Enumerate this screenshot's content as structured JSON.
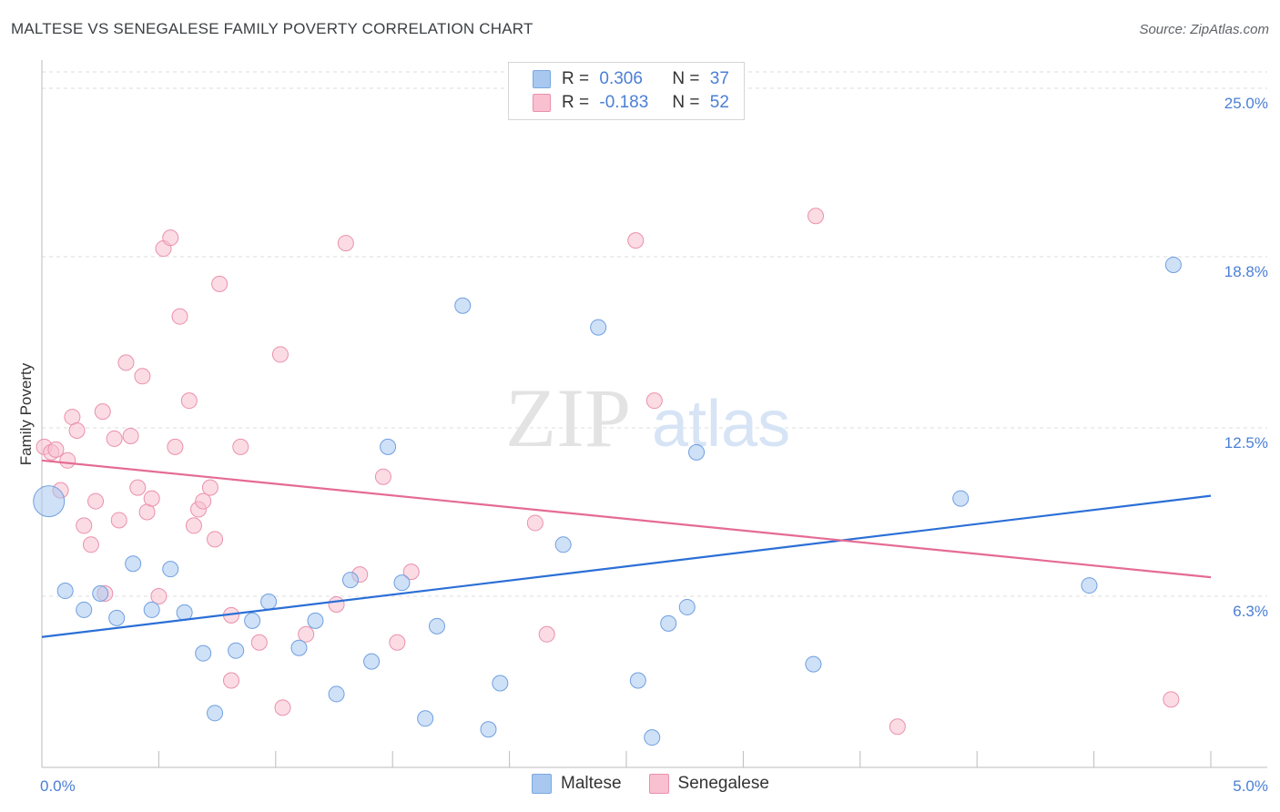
{
  "title": "MALTESE VS SENEGALESE FAMILY POVERTY CORRELATION CHART",
  "source": "Source: ZipAtlas.com",
  "watermark": {
    "zip": "ZIP",
    "atlas": "atlas"
  },
  "legend": {
    "rows": [
      {
        "r_label": "R =",
        "r_value": "0.306",
        "n_label": "N =",
        "n_value": "37",
        "color": "#a8c8f0",
        "border": "#7aa8e0"
      },
      {
        "r_label": "R =",
        "r_value": "-0.183",
        "n_label": "N =",
        "n_value": "52",
        "color": "#f8c0d0",
        "border": "#eb90ac"
      }
    ]
  },
  "bottom_legend": {
    "maltese": "Maltese",
    "senegalese": "Senegalese"
  },
  "colors": {
    "blue_fill": "#a8c8f0",
    "blue_stroke": "#6f9fe0",
    "blue_line": "#2b6fd6",
    "pink_fill": "#f8c0d0",
    "pink_stroke": "#eb90ac",
    "pink_line": "#e56b93",
    "axis_text": "#4a7fd6",
    "grid": "#dddddd"
  },
  "chart_data": {
    "type": "scatter",
    "xlabel": "",
    "ylabel": "Family Poverty",
    "xlim": [
      0,
      5.0
    ],
    "ylim": [
      0,
      25.0
    ],
    "x_tick_labels": [
      "0.0%",
      "5.0%"
    ],
    "y_ticks": [
      6.3,
      12.5,
      18.8,
      25.0
    ],
    "y_tick_labels": [
      "6.3%",
      "12.5%",
      "18.8%",
      "25.0%"
    ],
    "series": [
      {
        "name": "Maltese",
        "trend": {
          "x0": 0.0,
          "y0": 4.8,
          "x1": 5.0,
          "y1": 10.0
        },
        "points": [
          [
            0.03,
            9.8,
            "large"
          ],
          [
            0.1,
            6.5
          ],
          [
            0.18,
            5.8
          ],
          [
            0.25,
            6.4
          ],
          [
            0.32,
            5.5
          ],
          [
            0.39,
            7.5
          ],
          [
            0.47,
            5.8
          ],
          [
            0.55,
            7.3
          ],
          [
            0.61,
            5.7
          ],
          [
            0.69,
            4.2
          ],
          [
            0.74,
            2.0
          ],
          [
            0.83,
            4.3
          ],
          [
            0.9,
            5.4
          ],
          [
            0.97,
            6.1
          ],
          [
            1.1,
            4.4
          ],
          [
            1.17,
            5.4
          ],
          [
            1.26,
            2.7
          ],
          [
            1.32,
            6.9
          ],
          [
            1.41,
            3.9
          ],
          [
            1.48,
            11.8
          ],
          [
            1.54,
            6.8
          ],
          [
            1.64,
            1.8
          ],
          [
            1.69,
            5.2
          ],
          [
            1.8,
            17.0
          ],
          [
            1.91,
            1.4
          ],
          [
            1.96,
            3.1
          ],
          [
            2.23,
            8.2
          ],
          [
            2.38,
            16.2
          ],
          [
            2.55,
            3.2
          ],
          [
            2.61,
            1.1
          ],
          [
            2.68,
            5.3
          ],
          [
            2.76,
            5.9
          ],
          [
            2.8,
            11.6
          ],
          [
            3.3,
            3.8
          ],
          [
            3.93,
            9.9
          ],
          [
            4.48,
            6.7
          ],
          [
            4.84,
            18.5
          ]
        ]
      },
      {
        "name": "Senegalese",
        "trend": {
          "x0": 0.0,
          "y0": 11.3,
          "x1": 5.0,
          "y1": 7.0
        },
        "points": [
          [
            0.01,
            11.8
          ],
          [
            0.04,
            11.6
          ],
          [
            0.06,
            11.7
          ],
          [
            0.08,
            10.2
          ],
          [
            0.11,
            11.3
          ],
          [
            0.13,
            12.9
          ],
          [
            0.15,
            12.4
          ],
          [
            0.18,
            8.9
          ],
          [
            0.21,
            8.2
          ],
          [
            0.23,
            9.8
          ],
          [
            0.26,
            13.1
          ],
          [
            0.27,
            6.4
          ],
          [
            0.31,
            12.1
          ],
          [
            0.33,
            9.1
          ],
          [
            0.36,
            14.9
          ],
          [
            0.38,
            12.2
          ],
          [
            0.41,
            10.3
          ],
          [
            0.43,
            14.4
          ],
          [
            0.45,
            9.4
          ],
          [
            0.47,
            9.9
          ],
          [
            0.5,
            6.3
          ],
          [
            0.52,
            19.1
          ],
          [
            0.55,
            19.5
          ],
          [
            0.57,
            11.8
          ],
          [
            0.59,
            16.6
          ],
          [
            0.63,
            13.5
          ],
          [
            0.65,
            8.9
          ],
          [
            0.67,
            9.5
          ],
          [
            0.69,
            9.8
          ],
          [
            0.72,
            10.3
          ],
          [
            0.74,
            8.4
          ],
          [
            0.76,
            17.8
          ],
          [
            0.81,
            5.6
          ],
          [
            0.85,
            11.8
          ],
          [
            0.81,
            3.2
          ],
          [
            0.93,
            4.6
          ],
          [
            1.02,
            15.2
          ],
          [
            1.03,
            2.2
          ],
          [
            1.13,
            4.9
          ],
          [
            1.26,
            6.0
          ],
          [
            1.3,
            19.3
          ],
          [
            1.36,
            7.1
          ],
          [
            1.46,
            10.7
          ],
          [
            1.52,
            4.6
          ],
          [
            1.58,
            7.2
          ],
          [
            2.11,
            9.0
          ],
          [
            2.16,
            4.9
          ],
          [
            2.54,
            19.4
          ],
          [
            2.62,
            13.5
          ],
          [
            3.31,
            20.3
          ],
          [
            3.66,
            1.5
          ],
          [
            4.83,
            2.5
          ]
        ]
      }
    ]
  }
}
